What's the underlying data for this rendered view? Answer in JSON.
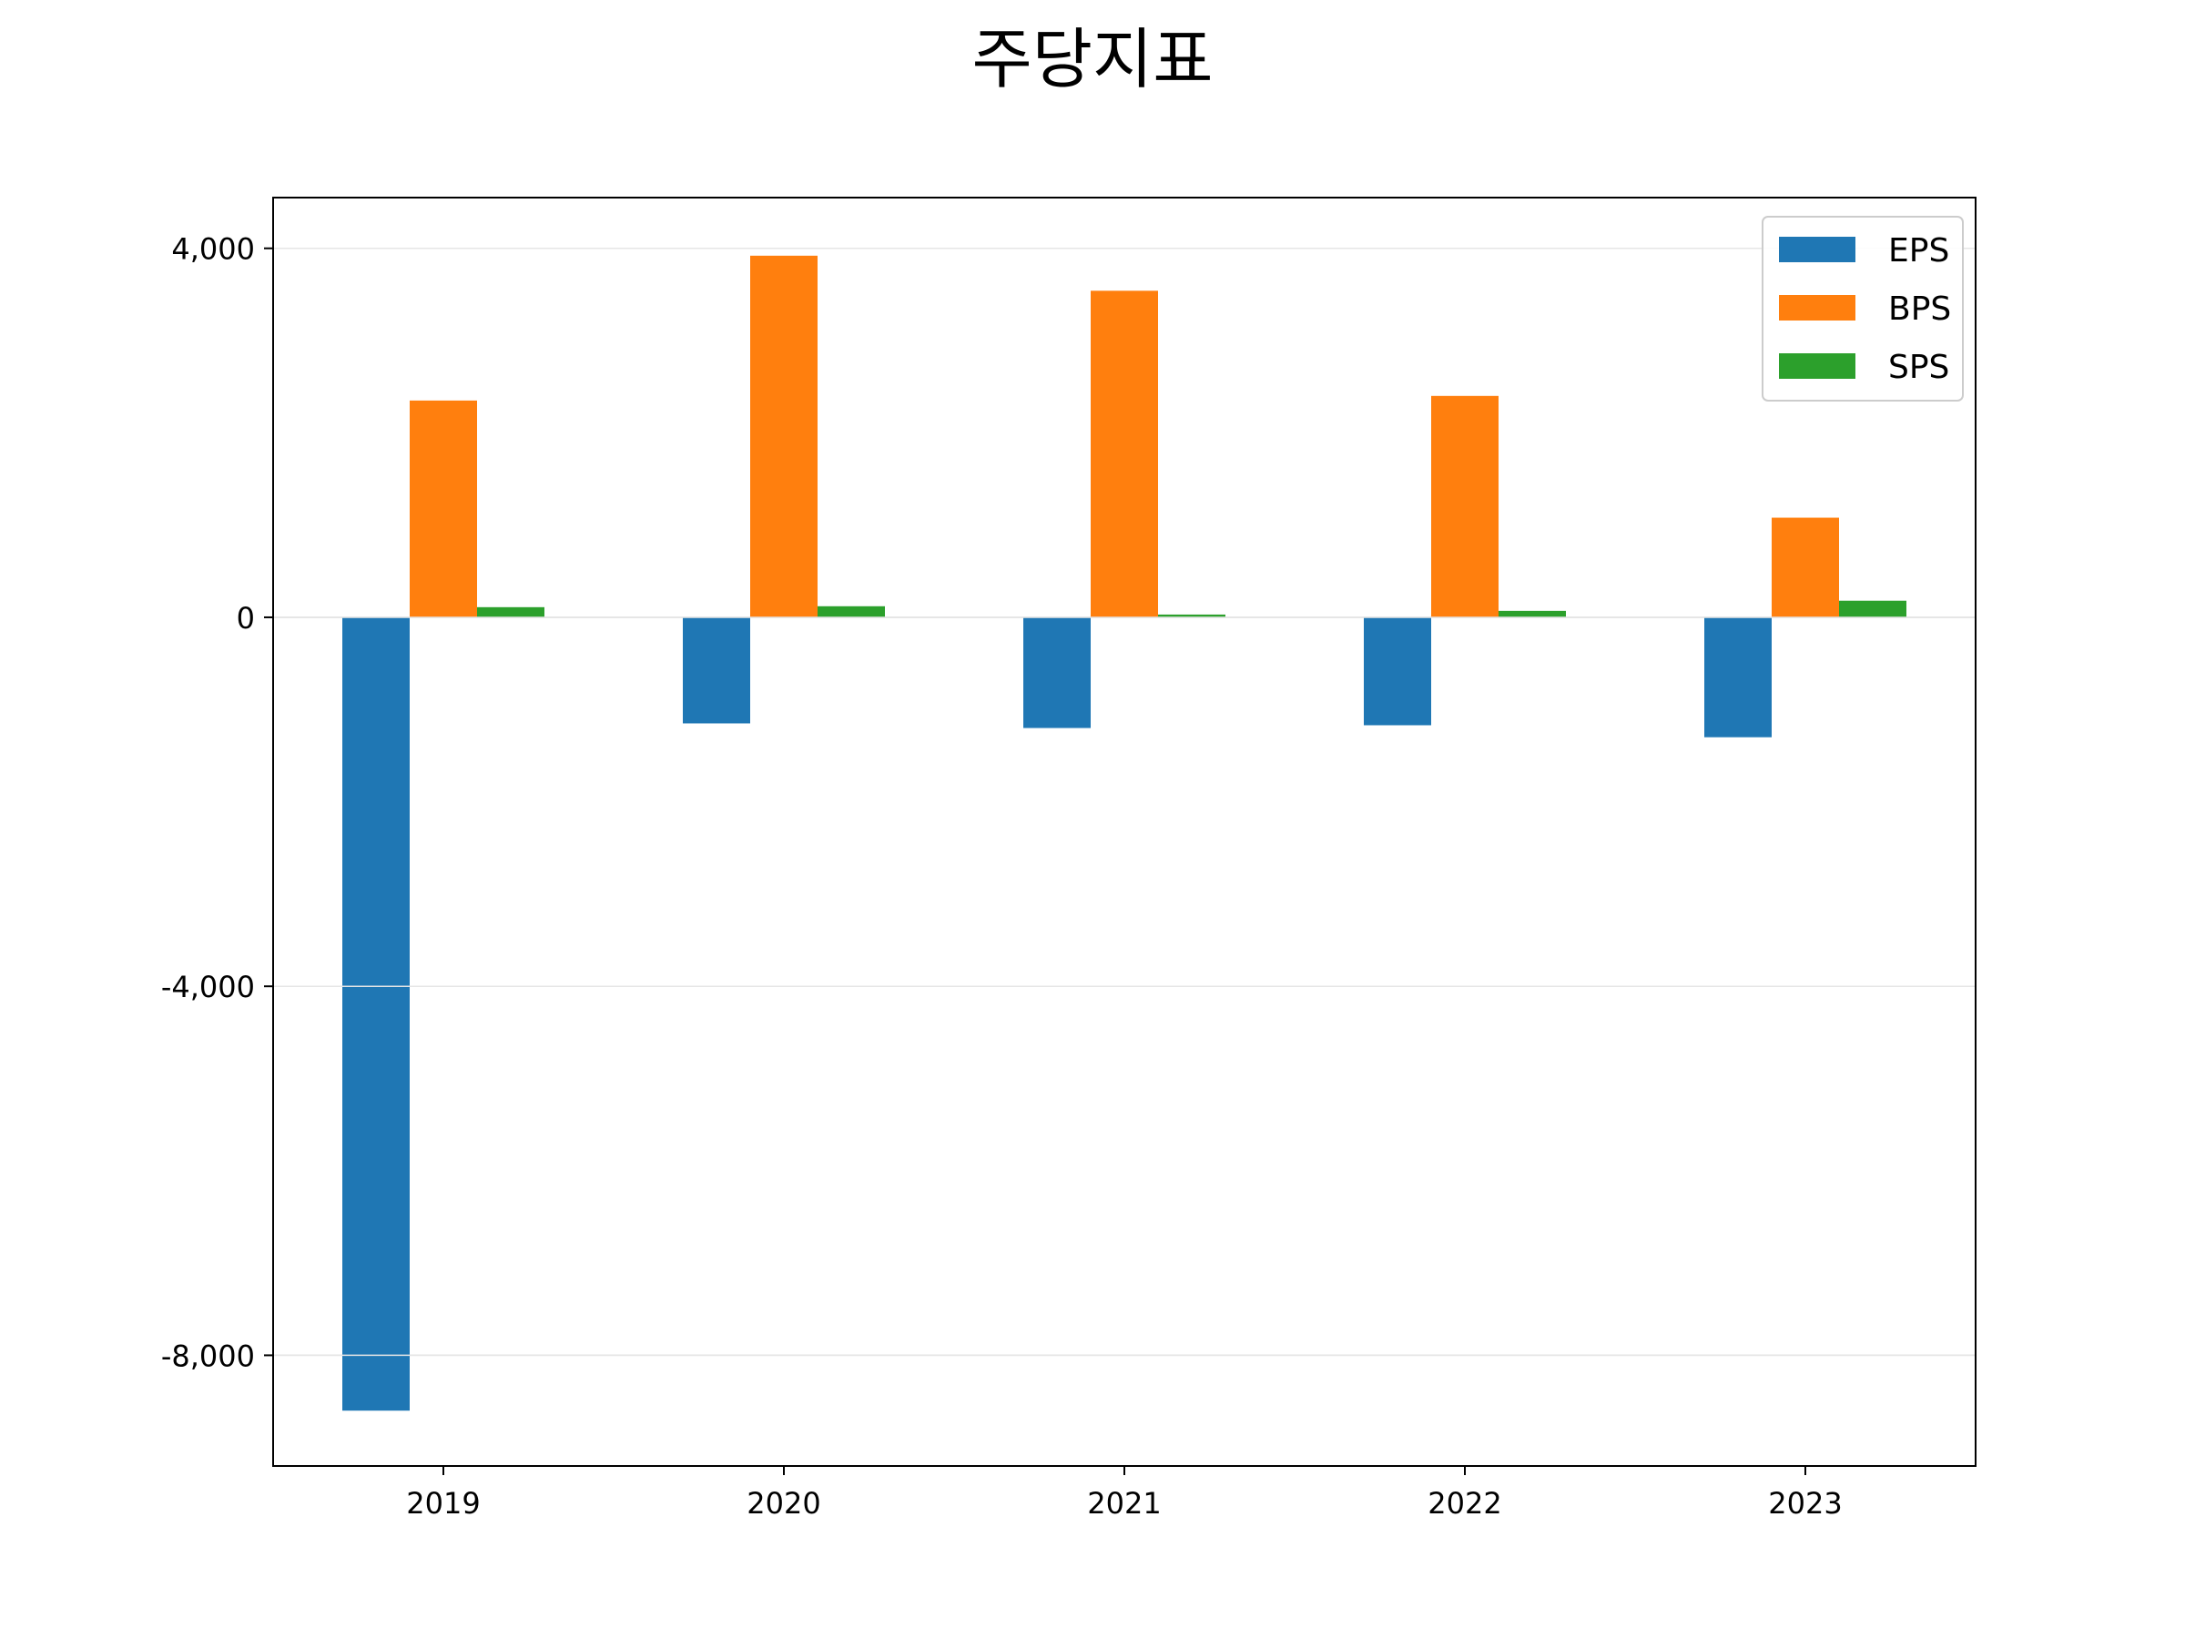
{
  "chart_data": {
    "type": "bar",
    "title": "주당지표",
    "xlabel": "",
    "ylabel": "",
    "categories": [
      "2019",
      "2020",
      "2021",
      "2022",
      "2023"
    ],
    "series": [
      {
        "name": "EPS",
        "color": "#1f77b4",
        "values": [
          -8600,
          -1150,
          -1200,
          -1170,
          -1300
        ]
      },
      {
        "name": "BPS",
        "color": "#ff7f0e",
        "values": [
          2350,
          3920,
          3540,
          2400,
          1080
        ]
      },
      {
        "name": "SPS",
        "color": "#2ca02c",
        "values": [
          110,
          120,
          30,
          70,
          180
        ]
      }
    ],
    "ylim": [
      -9200,
      4550
    ],
    "yticks": [
      4000,
      0,
      -4000,
      -8000
    ],
    "ytick_labels": [
      "4,000",
      "0",
      "-4,000",
      "-8,000"
    ],
    "grid": true,
    "legend_position": "top-right"
  }
}
